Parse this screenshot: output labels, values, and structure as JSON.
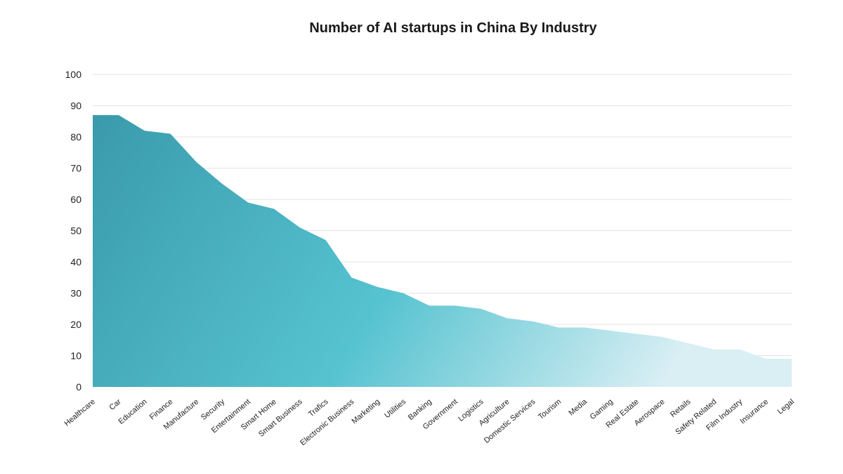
{
  "chart_data": {
    "type": "area",
    "title": "Number of AI startups in China By Industry",
    "xlabel": "",
    "ylabel": "",
    "ylim": [
      0,
      100
    ],
    "yticks": [
      0,
      10,
      20,
      30,
      40,
      50,
      60,
      70,
      80,
      90,
      100
    ],
    "grid": true,
    "categories": [
      "Healthcare",
      "Car",
      "Education",
      "Finance",
      "Manufacture",
      "Security",
      "Entertainment",
      "Smart Home",
      "Smart Business",
      "Trafics",
      "Electronic Business",
      "Marketing",
      "Utilities",
      "Banking",
      "Government",
      "Logistics",
      "Agriculture",
      "Domestic Services",
      "Tourism",
      "Media",
      "Gaming",
      "Real Estate",
      "Aerospace",
      "Retails",
      "Safety Related",
      "Film Industry",
      "Insurance",
      "Legal"
    ],
    "values": [
      87,
      87,
      82,
      81,
      72,
      65,
      59,
      57,
      51,
      47,
      35,
      32,
      30,
      26,
      26,
      25,
      22,
      21,
      19,
      19,
      18,
      17,
      16,
      14,
      12,
      12,
      9,
      9
    ],
    "colors": {
      "fill_dark": "#3a9aab",
      "fill_mid": "#56c3d0",
      "fill_light": "#d9eff4"
    }
  }
}
